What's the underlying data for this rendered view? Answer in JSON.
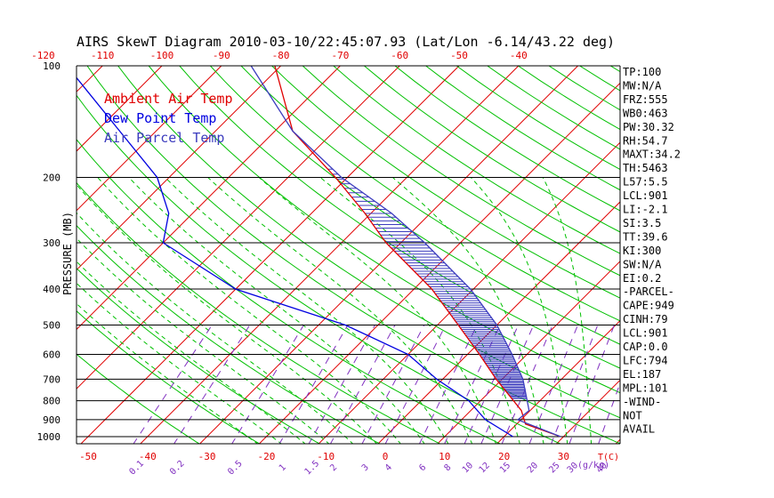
{
  "chart_data": {
    "type": "skew-t",
    "title": "AIRS SkewT Diagram 2010-03-10/22:45:07.93 (Lat/Lon -6.14/43.22 deg)",
    "ylabel": "PRESSURE (MB)",
    "temp_axis_unit": "T(C)",
    "mixing_ratio_unit": "(g/kg)",
    "pressure_range_mb": [
      1050,
      100
    ],
    "pressure_scale": "log",
    "bottom_temp_ticks": [
      -50,
      -40,
      -30,
      -20,
      -10,
      0,
      10,
      20,
      30
    ],
    "top_temp_ticks": [
      -120,
      -110,
      -100,
      -90,
      -80,
      -70,
      -60,
      -50,
      -40
    ],
    "pressure_ticks": [
      100,
      200,
      300,
      400,
      500,
      600,
      700,
      800,
      900,
      1000
    ],
    "mixing_ratio_labels": [
      "0.1",
      "0.2",
      "0.5",
      "1",
      "1.5",
      "2",
      "3",
      "4",
      "6",
      "8",
      "10",
      "12",
      "15",
      "20",
      "25",
      "30",
      "40"
    ],
    "legend": [
      {
        "name": "Ambient Air Temp",
        "color": "#e00000"
      },
      {
        "name": "Dew Point Temp",
        "color": "#0000e0"
      },
      {
        "name": "Air Parcel Temp",
        "color": "#3c3cbe"
      }
    ],
    "series": [
      {
        "name": "Ambient Air Temp",
        "color": "#e00000",
        "points": [
          {
            "p": 1000,
            "t": 29.5
          },
          {
            "p": 925,
            "t": 21.5
          },
          {
            "p": 850,
            "t": 18.5
          },
          {
            "p": 700,
            "t": 9.0
          },
          {
            "p": 600,
            "t": 2.0
          },
          {
            "p": 500,
            "t": -6.5
          },
          {
            "p": 400,
            "t": -17.0
          },
          {
            "p": 300,
            "t": -32.5
          },
          {
            "p": 250,
            "t": -41.0
          },
          {
            "p": 200,
            "t": -52.0
          },
          {
            "p": 150,
            "t": -67.0
          },
          {
            "p": 100,
            "t": -81.0
          }
        ]
      },
      {
        "name": "Dew Point Temp",
        "color": "#0000e0",
        "points": [
          {
            "p": 1000,
            "t": 21.5
          },
          {
            "p": 900,
            "t": 14.0
          },
          {
            "p": 800,
            "t": 8.0
          },
          {
            "p": 700,
            "t": -1.0
          },
          {
            "p": 600,
            "t": -10.0
          },
          {
            "p": 500,
            "t": -25.5
          },
          {
            "p": 400,
            "t": -50.0
          },
          {
            "p": 300,
            "t": -70.0
          },
          {
            "p": 250,
            "t": -74.0
          },
          {
            "p": 200,
            "t": -82.0
          },
          {
            "p": 100,
            "t": -116.0
          }
        ]
      },
      {
        "name": "Air Parcel Temp",
        "color": "#3c3cbe",
        "points": [
          {
            "p": 1000,
            "t": 29.5
          },
          {
            "p": 901,
            "t": 19.5
          },
          {
            "p": 850,
            "t": 19.8
          },
          {
            "p": 700,
            "t": 13.5
          },
          {
            "p": 600,
            "t": 7.5
          },
          {
            "p": 500,
            "t": 0.0
          },
          {
            "p": 400,
            "t": -10.5
          },
          {
            "p": 300,
            "t": -26.0
          },
          {
            "p": 250,
            "t": -36.5
          },
          {
            "p": 200,
            "t": -51.0
          },
          {
            "p": 150,
            "t": -67.0
          },
          {
            "p": 100,
            "t": -85.0
          }
        ]
      }
    ]
  },
  "stats": [
    "TP:100",
    "MW:N/A",
    "FRZ:555",
    "WB0:463",
    "PW:30.32",
    "RH:54.7",
    "MAXT:34.2",
    "TH:5463",
    "L57:5.5",
    "LCL:901",
    "LI:-2.1",
    "SI:3.5",
    "TT:39.6",
    "KI:300",
    "SW:N/A",
    "EI:0.2",
    "-PARCEL-",
    "CAPE:949",
    "CINH:79",
    "LCL:901",
    "CAP:0.0",
    "LFC:794",
    "EL:187",
    "MPL:101",
    "-WIND-",
    "NOT",
    "AVAIL"
  ],
  "colors": {
    "isotherm": "#e00000",
    "dry_adiabat": "#00c000",
    "moist_adiabat": "#00c000",
    "mixing_ratio": "#8030c0",
    "frame": "#000000",
    "hatch": "#3c3cbe"
  }
}
